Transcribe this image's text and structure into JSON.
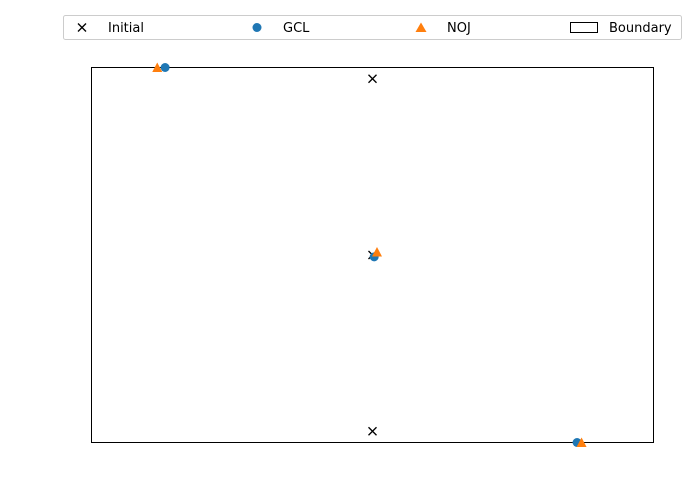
{
  "chart_data": {
    "type": "scatter",
    "title": "",
    "xlabel": "",
    "ylabel": "",
    "axes_visible": false,
    "xlim": [
      0,
      1
    ],
    "ylim": [
      0,
      1
    ],
    "boundary": {
      "x": [
        0,
        1
      ],
      "y": [
        0,
        1
      ]
    },
    "legend": {
      "placement": "top",
      "entries": [
        {
          "label": "Initial",
          "marker": "x",
          "color": "#000000"
        },
        {
          "label": "GCL",
          "marker": "circle",
          "color": "#1f77b4"
        },
        {
          "label": "NOJ",
          "marker": "triangle",
          "color": "#ff7f0e"
        },
        {
          "label": "Boundary",
          "marker": "rect",
          "color": "#000000"
        }
      ]
    },
    "series": [
      {
        "name": "Initial",
        "marker": "x",
        "color": "#000000",
        "points": [
          {
            "x": 0.5,
            "y": 0.97
          },
          {
            "x": 0.5,
            "y": 0.5
          },
          {
            "x": 0.5,
            "y": 0.03
          }
        ]
      },
      {
        "name": "GCL",
        "marker": "circle",
        "color": "#1f77b4",
        "points": [
          {
            "x": 0.131,
            "y": 1.0
          },
          {
            "x": 0.503,
            "y": 0.495
          },
          {
            "x": 0.864,
            "y": 0.0
          }
        ]
      },
      {
        "name": "NOJ",
        "marker": "triangle",
        "color": "#ff7f0e",
        "points": [
          {
            "x": 0.117,
            "y": 1.0
          },
          {
            "x": 0.508,
            "y": 0.508
          },
          {
            "x": 0.872,
            "y": 0.0
          }
        ]
      }
    ]
  }
}
